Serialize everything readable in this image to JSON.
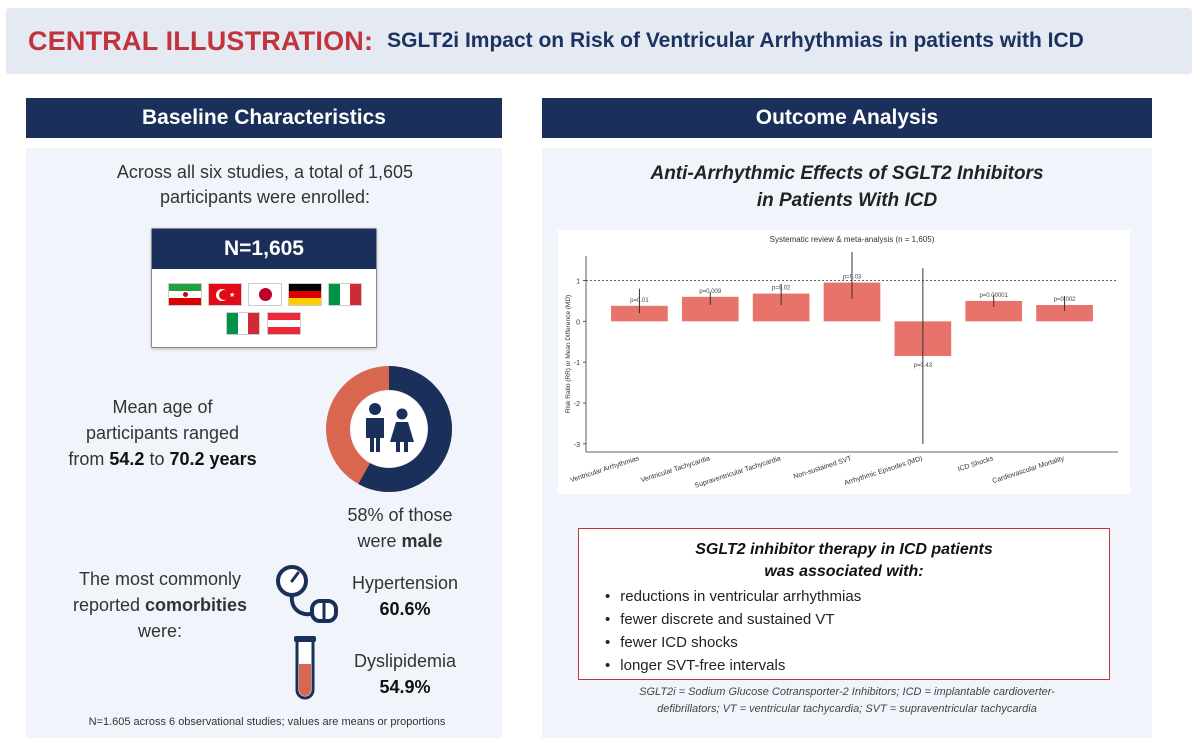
{
  "title": {
    "accent": "CENTRAL ILLUSTRATION:",
    "main": "SGLT2i Impact on Risk of Ventricular Arrhythmias in patients with ICD"
  },
  "left": {
    "header": "Baseline Characteristics",
    "enrolled_line1": "Across all six studies, a total of 1,605",
    "enrolled_line2": "participants were enrolled:",
    "n_label": "N=1,605",
    "flags": [
      {
        "name": "iran-flag"
      },
      {
        "name": "turkey-flag"
      },
      {
        "name": "japan-flag"
      },
      {
        "name": "germany-flag"
      },
      {
        "name": "italy-flag"
      },
      {
        "name": "italy-flag-2"
      },
      {
        "name": "austria-flag"
      }
    ],
    "age_line1": "Mean age of",
    "age_line2": "participants ranged",
    "age_from": "from",
    "age_min": "54.2",
    "age_to": "to",
    "age_max": "70.2 years",
    "male_percent": 58,
    "male_line1": "58% of those",
    "male_line2_pre": "were",
    "male_line2_bold": "male",
    "comorb_line1": "The most commonly",
    "comorb_line2_pre": "reported",
    "comorb_line2_bold": "comorbities",
    "comorb_line3": "were:",
    "hypertension_label": "Hypertension",
    "hypertension_value": "60.6%",
    "dyslipidemia_label": "Dyslipidemia",
    "dyslipidemia_value": "54.9%",
    "footnote": "N=1.605 across 6 observational studies; values are means or proportions",
    "colors": {
      "donut_male": "#1a2f59",
      "donut_female": "#d9664e",
      "accent": "#c0343c"
    }
  },
  "right": {
    "header": "Outcome Analysis",
    "subtitle_line1": "Anti-Arrhythmic Effects of SGLT2 Inhibitors",
    "subtitle_line2": "in Patients With ICD",
    "summary_line1": "SGLT2 inhibitor therapy in ICD patients",
    "summary_line2": "was associated with:",
    "summary_items": [
      "reductions in ventricular arrhythmias",
      "fewer discrete and sustained VT",
      "fewer ICD shocks",
      "longer SVT-free intervals"
    ],
    "abbrev_line1": "SGLT2i = Sodium Glucose Cotransporter-2 Inhibitors; ICD =  implantable cardioverter-",
    "abbrev_line2": "defibrillators; VT = ventricular tachycardia; SVT =  supraventricular tachycardia"
  },
  "chart_data": {
    "type": "bar",
    "title": "Systematic review & meta-analysis (n = 1,605)",
    "ylabel": "Risk Ratio (RR) or Mean Difference (MD)",
    "xlabel": "",
    "ylim": [
      -3.2,
      1.6
    ],
    "yticks": [
      1,
      0,
      -1,
      -2,
      -3
    ],
    "reference_line": 1,
    "bar_color": "#e8736b",
    "categories": [
      "Ventricular Arrhythmias",
      "Ventricular Tachycardia",
      "Supraventricular Tachycardia",
      "Non-sustained SVT",
      "Arrhythmic Episodes (MD)",
      "ICD Shocks",
      "Cardiovascular Mortality"
    ],
    "values": [
      0.38,
      0.6,
      0.68,
      0.95,
      -0.85,
      0.5,
      0.4
    ],
    "ci_low": [
      0.2,
      0.4,
      0.4,
      0.55,
      -3.0,
      0.35,
      0.25
    ],
    "ci_high": [
      0.8,
      0.72,
      0.92,
      1.7,
      1.3,
      0.65,
      0.62
    ],
    "p_labels": [
      "p=0.01",
      "p=0.009",
      "p=0.02",
      "p=0.03",
      "p=0.43",
      "p=0.00001",
      "p=0.002"
    ]
  }
}
